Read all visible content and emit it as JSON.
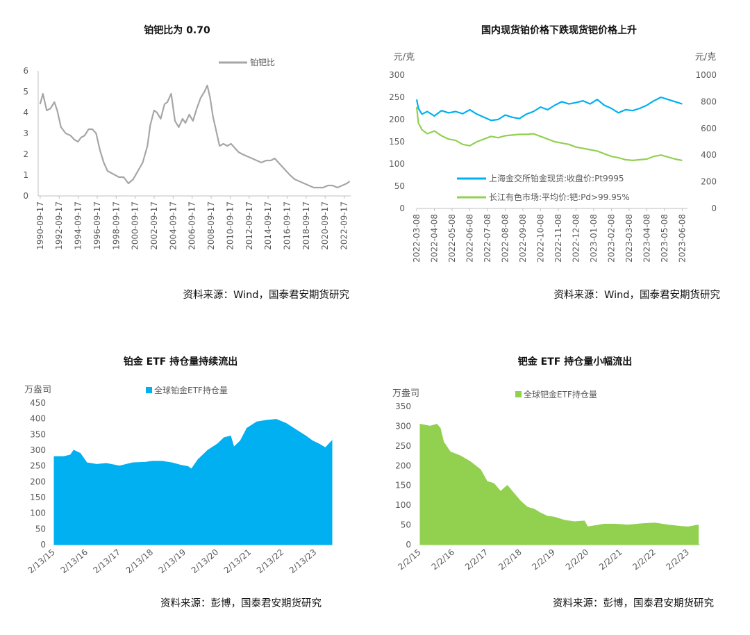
{
  "chart_data": [
    {
      "type": "line",
      "title": "铂钯比为 0.70",
      "legend": [
        "铂钯比"
      ],
      "legend_position": "top-right",
      "grid": false,
      "ylim": [
        0,
        6
      ],
      "y_ticks": [
        "0",
        "1",
        "2",
        "3",
        "4",
        "5",
        "6"
      ],
      "x_ticks": [
        "1990-09-17",
        "1992-09-17",
        "1994-09-17",
        "1996-09-17",
        "1998-09-17",
        "2000-09-17",
        "2002-09-17",
        "2004-09-17",
        "2006-09-17",
        "2008-09-17",
        "2010-09-17",
        "2012-09-17",
        "2014-09-17",
        "2016-09-17",
        "2018-09-17",
        "2020-09-17",
        "2022-09-17"
      ],
      "xlim": [
        1990.5,
        2023.4
      ],
      "colors": {
        "line": "#a6a6a6"
      },
      "series": [
        {
          "name": "铂钯比",
          "x": [
            1990.7,
            1991.0,
            1991.4,
            1991.8,
            1992.2,
            1992.5,
            1992.9,
            1993.4,
            1993.9,
            1994.3,
            1994.7,
            1995.0,
            1995.4,
            1995.8,
            1996.2,
            1996.6,
            1997.0,
            1997.4,
            1997.8,
            1998.2,
            1998.6,
            1999.0,
            1999.5,
            2000.0,
            2000.5,
            2001.0,
            2001.5,
            2002.0,
            2002.3,
            2002.7,
            2003.0,
            2003.4,
            2003.8,
            2004.1,
            2004.5,
            2004.9,
            2005.3,
            2005.7,
            2006.0,
            2006.4,
            2006.8,
            2007.2,
            2007.6,
            2008.0,
            2008.3,
            2008.6,
            2008.9,
            2009.2,
            2009.6,
            2010.0,
            2010.4,
            2010.8,
            2011.2,
            2011.6,
            2012.0,
            2012.5,
            2013.0,
            2013.5,
            2014.0,
            2014.5,
            2015.0,
            2015.4,
            2015.8,
            2016.2,
            2016.6,
            2017.0,
            2017.5,
            2018.0,
            2018.5,
            2019.0,
            2019.5,
            2020.0,
            2020.5,
            2021.0,
            2021.5,
            2022.0,
            2022.5,
            2023.0,
            2023.3
          ],
          "values": [
            4.4,
            4.9,
            4.1,
            4.2,
            4.5,
            4.1,
            3.3,
            3.0,
            2.9,
            2.7,
            2.6,
            2.8,
            2.9,
            3.2,
            3.2,
            3.0,
            2.2,
            1.6,
            1.2,
            1.1,
            1.0,
            0.9,
            0.9,
            0.6,
            0.8,
            1.2,
            1.6,
            2.4,
            3.4,
            4.1,
            4.0,
            3.7,
            4.4,
            4.5,
            4.9,
            3.6,
            3.3,
            3.7,
            3.5,
            3.9,
            3.6,
            4.2,
            4.7,
            5.0,
            5.3,
            4.7,
            3.8,
            3.2,
            2.4,
            2.5,
            2.4,
            2.5,
            2.3,
            2.1,
            2.0,
            1.9,
            1.8,
            1.7,
            1.6,
            1.7,
            1.7,
            1.8,
            1.6,
            1.4,
            1.2,
            1.0,
            0.8,
            0.7,
            0.6,
            0.5,
            0.4,
            0.4,
            0.4,
            0.5,
            0.5,
            0.4,
            0.5,
            0.6,
            0.7
          ]
        }
      ],
      "source": "资料来源：Wind，国泰君安期货研究"
    },
    {
      "type": "line",
      "title": "国内现货铂价格下跌现货钯价格上升",
      "left_unit": "元/克",
      "right_unit": "元/克",
      "ylim_left": [
        0,
        300
      ],
      "ylim_right": [
        0,
        1000
      ],
      "y_ticks_left": [
        "0",
        "50",
        "100",
        "150",
        "200",
        "250",
        "300"
      ],
      "y_ticks_right": [
        "0",
        "200",
        "400",
        "600",
        "800",
        "1000"
      ],
      "x_ticks": [
        "2022-03-08",
        "2022-04-08",
        "2022-05-08",
        "2022-06-08",
        "2022-07-08",
        "2022-08-08",
        "2022-09-08",
        "2022-10-08",
        "2022-11-08",
        "2022-12-08",
        "2023-01-08",
        "2023-02-08",
        "2023-03-08",
        "2023-04-08",
        "2023-05-08",
        "2023-06-08"
      ],
      "xlim": [
        0,
        15.3
      ],
      "legend_position": "bottom-center",
      "grid": false,
      "colors": {
        "pt": "#00b0f0",
        "pd": "#92d050"
      },
      "series": [
        {
          "name": "上海金交所铂金现货:收盘价:Pt9995",
          "axis": "left",
          "x": [
            0.0,
            0.1,
            0.3,
            0.6,
            1.0,
            1.4,
            1.8,
            2.2,
            2.6,
            3.0,
            3.4,
            3.8,
            4.2,
            4.6,
            5.0,
            5.4,
            5.8,
            6.2,
            6.6,
            7.0,
            7.4,
            7.8,
            8.2,
            8.6,
            9.0,
            9.4,
            9.8,
            10.2,
            10.6,
            11.0,
            11.4,
            11.8,
            12.2,
            12.6,
            13.0,
            13.4,
            13.8,
            14.2,
            14.6,
            15.0
          ],
          "values": [
            245,
            225,
            212,
            218,
            208,
            220,
            215,
            218,
            213,
            222,
            212,
            205,
            198,
            200,
            210,
            205,
            202,
            212,
            218,
            228,
            222,
            232,
            240,
            235,
            238,
            242,
            235,
            245,
            232,
            225,
            215,
            222,
            220,
            225,
            232,
            242,
            250,
            245,
            240,
            235
          ]
        },
        {
          "name": "长江有色市场:平均价:钯:Pd>99.95%",
          "axis": "right",
          "x": [
            0.0,
            0.1,
            0.3,
            0.6,
            1.0,
            1.4,
            1.8,
            2.2,
            2.6,
            3.0,
            3.4,
            3.8,
            4.2,
            4.6,
            5.0,
            5.4,
            5.8,
            6.2,
            6.6,
            7.0,
            7.4,
            7.8,
            8.2,
            8.6,
            9.0,
            9.4,
            9.8,
            10.2,
            10.6,
            11.0,
            11.4,
            11.8,
            12.2,
            12.6,
            13.0,
            13.4,
            13.8,
            14.2,
            14.6,
            15.0
          ],
          "values": [
            760,
            640,
            590,
            560,
            580,
            545,
            520,
            510,
            480,
            470,
            500,
            520,
            540,
            530,
            545,
            550,
            555,
            555,
            560,
            540,
            520,
            500,
            490,
            480,
            460,
            450,
            440,
            430,
            410,
            390,
            380,
            365,
            360,
            365,
            370,
            390,
            400,
            385,
            370,
            360
          ]
        }
      ],
      "source": "资料来源：Wind，国泰君安期货研究"
    },
    {
      "type": "area",
      "title": "铂金 ETF 持仓量持续流出",
      "unit": "万盎司",
      "legend": [
        "全球铂金ETF持仓量"
      ],
      "legend_position": "top-center",
      "grid": false,
      "ylim": [
        0,
        450
      ],
      "y_ticks": [
        "0",
        "50",
        "100",
        "150",
        "200",
        "250",
        "300",
        "350",
        "400",
        "450"
      ],
      "x_ticks": [
        "2/13/15",
        "2/13/16",
        "2/13/17",
        "2/13/18",
        "2/13/19",
        "2/13/20",
        "2/13/21",
        "2/13/22",
        "2/13/23"
      ],
      "xlim": [
        0,
        8.5
      ],
      "colors": {
        "fill": "#00b0f0"
      },
      "series": [
        {
          "name": "全球铂金ETF持仓量",
          "x": [
            0.0,
            0.3,
            0.5,
            0.6,
            0.8,
            1.0,
            1.3,
            1.6,
            2.0,
            2.4,
            2.8,
            3.0,
            3.3,
            3.6,
            3.9,
            4.1,
            4.2,
            4.4,
            4.7,
            5.0,
            5.2,
            5.4,
            5.5,
            5.7,
            5.9,
            6.2,
            6.5,
            6.8,
            7.1,
            7.4,
            7.7,
            7.9,
            8.1,
            8.3,
            8.5
          ],
          "values": [
            280,
            280,
            285,
            300,
            290,
            260,
            255,
            258,
            250,
            260,
            262,
            265,
            265,
            260,
            252,
            248,
            240,
            270,
            300,
            320,
            340,
            345,
            310,
            330,
            370,
            390,
            395,
            398,
            385,
            365,
            345,
            330,
            320,
            308,
            330
          ]
        }
      ],
      "source": "资料来源：彭博，国泰君安期货研究"
    },
    {
      "type": "area",
      "title": "钯金 ETF 持仓量小幅流出",
      "unit": "万盎司",
      "legend": [
        "全球钯金ETF持仓量"
      ],
      "legend_position": "top-center",
      "grid": false,
      "ylim": [
        0,
        350
      ],
      "y_ticks": [
        "0",
        "50",
        "100",
        "150",
        "200",
        "250",
        "300",
        "350"
      ],
      "x_ticks": [
        "2/2/15",
        "2/2/16",
        "2/2/17",
        "2/2/18",
        "2/2/19",
        "2/2/20",
        "2/2/21",
        "2/2/22",
        "2/2/23"
      ],
      "xlim": [
        0,
        8.35
      ],
      "colors": {
        "fill": "#92d050"
      },
      "series": [
        {
          "name": "全球钯金ETF持仓量",
          "x": [
            0.0,
            0.3,
            0.5,
            0.6,
            0.7,
            0.9,
            1.2,
            1.5,
            1.8,
            2.0,
            2.2,
            2.4,
            2.6,
            2.8,
            3.0,
            3.2,
            3.4,
            3.6,
            3.8,
            4.0,
            4.3,
            4.6,
            4.9,
            5.0,
            5.2,
            5.5,
            5.8,
            6.2,
            6.6,
            7.0,
            7.4,
            7.8,
            8.0,
            8.3
          ],
          "values": [
            305,
            300,
            305,
            295,
            260,
            235,
            225,
            210,
            190,
            160,
            155,
            135,
            150,
            130,
            110,
            95,
            90,
            80,
            72,
            70,
            62,
            58,
            60,
            45,
            48,
            52,
            52,
            50,
            53,
            55,
            50,
            46,
            45,
            50
          ]
        }
      ],
      "source": "资料来源：彭博，国泰君安期货研究"
    }
  ]
}
